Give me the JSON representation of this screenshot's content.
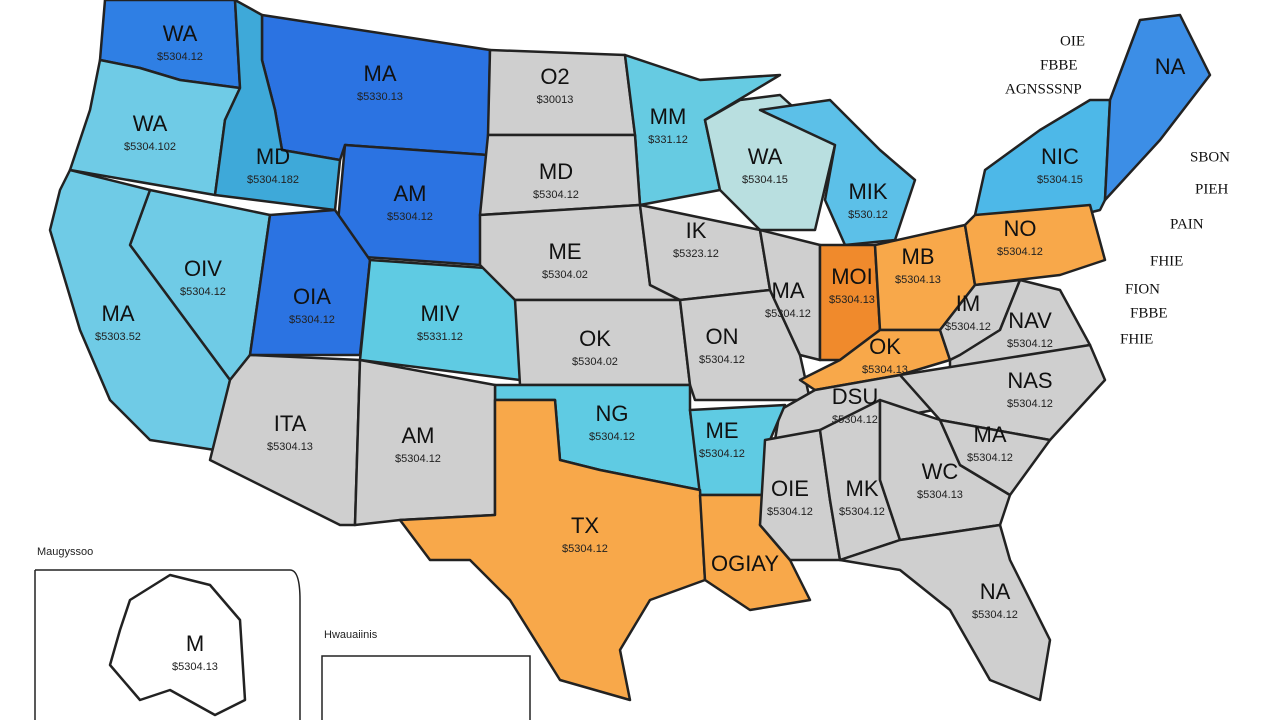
{
  "regions": [
    {
      "label": "WA",
      "value": "$5304.12",
      "color": "#2f7fe4"
    },
    {
      "label": "MA",
      "value": "$5330.13",
      "color": "#2b73e2"
    },
    {
      "label": "O2",
      "value": "$30013",
      "color": "#cfcfcf"
    },
    {
      "label": "MM",
      "value": "$331.12",
      "color": "#66cbe2"
    },
    {
      "label": "WA",
      "value": "$5304.102",
      "color": "#6fcbe6"
    },
    {
      "label": "MD",
      "value": "$5304.182",
      "color": "#3ea9d9"
    },
    {
      "label": "AM",
      "value": "$5304.12",
      "color": "#2b73e2"
    },
    {
      "label": "MD",
      "value": "$5304.12",
      "color": "#cfcfcf"
    },
    {
      "label": "WA",
      "value": "$5304.15",
      "color": "#b9dfe0"
    },
    {
      "label": "MIK",
      "value": "$530.12",
      "color": "#5cc0e8"
    },
    {
      "label": "NIC",
      "value": "$5304.15",
      "color": "#4db8e8"
    },
    {
      "label": "NA",
      "value": "",
      "color": "#3c8ee6"
    },
    {
      "label": "OIV",
      "value": "$5304.12",
      "color": "#6fcbe6"
    },
    {
      "label": "MA",
      "value": "$5303.52",
      "color": "#6fcbe6"
    },
    {
      "label": "OIA",
      "value": "$5304.12",
      "color": "#2b73e2"
    },
    {
      "label": "MIV",
      "value": "$5331.12",
      "color": "#5fcbe3"
    },
    {
      "label": "ME",
      "value": "$5304.02",
      "color": "#cfcfcf"
    },
    {
      "label": "IK",
      "value": "$5323.12",
      "color": "#cfcfcf"
    },
    {
      "label": "OK",
      "value": "$5304.02",
      "color": "#cfcfcf"
    },
    {
      "label": "ON",
      "value": "$5304.12",
      "color": "#cfcfcf"
    },
    {
      "label": "MA",
      "value": "$5304.12",
      "color": "#cfcfcf"
    },
    {
      "label": "MOI",
      "value": "$5304.13",
      "color": "#f08a2c"
    },
    {
      "label": "MB",
      "value": "$5304.13",
      "color": "#f8a84a"
    },
    {
      "label": "NO",
      "value": "$5304.12",
      "color": "#f8a84a"
    },
    {
      "label": "OK",
      "value": "$5304.13",
      "color": "#f8a84a"
    },
    {
      "label": "IM",
      "value": "$5304.12",
      "color": "#cfcfcf"
    },
    {
      "label": "NAV",
      "value": "$5304.12",
      "color": "#cfcfcf"
    },
    {
      "label": "DSU",
      "value": "$5304.12",
      "color": "#cfcfcf"
    },
    {
      "label": "NAS",
      "value": "$5304.12",
      "color": "#cfcfcf"
    },
    {
      "label": "NG",
      "value": "$5304.12",
      "color": "#5fcbe3"
    },
    {
      "label": "ME",
      "value": "$5304.12",
      "color": "#5fcbe3"
    },
    {
      "label": "ITA",
      "value": "$5304.13",
      "color": "#cfcfcf"
    },
    {
      "label": "AM",
      "value": "$5304.12",
      "color": "#cfcfcf"
    },
    {
      "label": "TX",
      "value": "$5304.12",
      "color": "#f8a84a"
    },
    {
      "label": "OGIAY",
      "value": "",
      "color": "#f8a84a"
    },
    {
      "label": "OIE",
      "value": "$5304.12",
      "color": "#cfcfcf"
    },
    {
      "label": "MK",
      "value": "$5304.12",
      "color": "#cfcfcf"
    },
    {
      "label": "WC",
      "value": "$5304.13",
      "color": "#cfcfcf"
    },
    {
      "label": "MA",
      "value": "$5304.12",
      "color": "#cfcfcf"
    },
    {
      "label": "NA",
      "value": "$5304.12",
      "color": "#cfcfcf"
    },
    {
      "label": "M",
      "value": "$5304.13",
      "color": "#ffffff"
    }
  ],
  "side_labels": [
    "OIE",
    "FBBE",
    "AGNSSSNP",
    "SBON",
    "PIEH",
    "PAIN",
    "FHIE",
    "FION",
    "FBBE",
    "FHIE"
  ],
  "insets": [
    "Maugyssoo",
    "Hwauaiinis"
  ]
}
